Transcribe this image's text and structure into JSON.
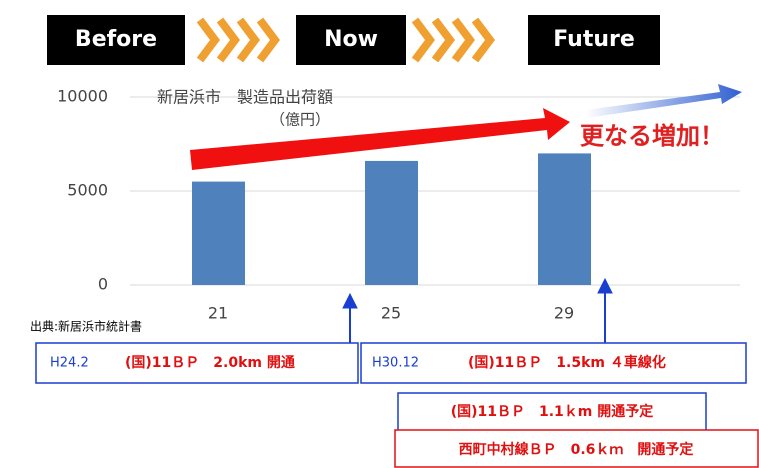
{
  "chart_data": {
    "type": "bar",
    "title": "新居浜市　製造品出荷額",
    "subtitle": "（億円）",
    "categories": [
      "21",
      "25",
      "29"
    ],
    "values": [
      5500,
      6600,
      7000
    ],
    "color": "#4f81bd",
    "ylim": [
      0,
      10000
    ],
    "yticks": [
      0,
      5000,
      10000
    ],
    "grid": true,
    "source": "出典:新居浜市統計書",
    "annotation": "更なる増加！"
  },
  "stages": [
    "Before",
    "Now",
    "Future"
  ],
  "events": [
    {
      "date": "H24.2",
      "text": "(国)11ＢＰ　2.0km 開通"
    },
    {
      "date": "H30.12",
      "text": "(国)11ＢＰ　1.5km ４車線化"
    },
    {
      "text": "(国)11ＢＰ　1.1ｋm 開通予定"
    },
    {
      "text": "西町中村線ＢＰ　0.6ｋｍ　開通予定"
    }
  ]
}
